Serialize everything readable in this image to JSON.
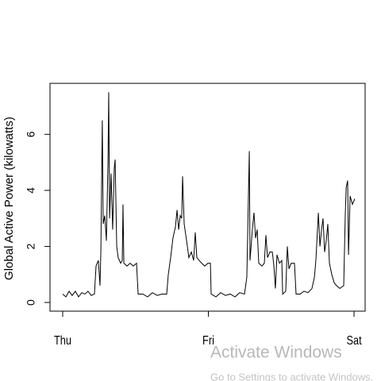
{
  "chart_data": {
    "type": "line",
    "ylabel": "Global Active Power (kilowatts)",
    "xlim": [
      -0.087,
      2.076
    ],
    "ylim": [
      -0.31,
      7.82
    ],
    "xticks": [
      {
        "value": 0,
        "label": "Thu"
      },
      {
        "value": 1,
        "label": "Fri"
      },
      {
        "value": 2,
        "label": "Sat"
      }
    ],
    "yticks": [
      0,
      2,
      4,
      6
    ],
    "color": "#000000",
    "x": [
      0.0,
      0.022,
      0.044,
      0.065,
      0.087,
      0.109,
      0.131,
      0.153,
      0.174,
      0.196,
      0.218,
      0.229,
      0.245,
      0.256,
      0.262,
      0.272,
      0.278,
      0.289,
      0.3,
      0.311,
      0.316,
      0.322,
      0.332,
      0.343,
      0.354,
      0.36,
      0.371,
      0.381,
      0.398,
      0.409,
      0.414,
      0.42,
      0.441,
      0.463,
      0.485,
      0.507,
      0.518,
      0.55,
      0.583,
      0.616,
      0.649,
      0.681,
      0.714,
      0.725,
      0.741,
      0.757,
      0.774,
      0.785,
      0.796,
      0.807,
      0.817,
      0.823,
      0.834,
      0.845,
      0.856,
      0.866,
      0.883,
      0.899,
      0.91,
      0.921,
      0.937,
      0.954,
      0.975,
      0.997,
      1.014,
      1.019,
      1.052,
      1.084,
      1.117,
      1.15,
      1.183,
      1.215,
      1.248,
      1.264,
      1.281,
      1.286,
      1.302,
      1.313,
      1.324,
      1.335,
      1.346,
      1.368,
      1.384,
      1.395,
      1.406,
      1.422,
      1.439,
      1.45,
      1.46,
      1.471,
      1.488,
      1.504,
      1.51,
      1.531,
      1.542,
      1.553,
      1.569,
      1.591,
      1.602,
      1.629,
      1.657,
      1.684,
      1.711,
      1.728,
      1.738,
      1.755,
      1.766,
      1.777,
      1.787,
      1.798,
      1.809,
      1.82,
      1.831,
      1.847,
      1.864,
      1.88,
      1.902,
      1.929,
      1.94,
      1.946,
      1.956,
      1.962,
      1.973,
      1.989,
      2.005
    ],
    "values": [
      0.3,
      0.2,
      0.4,
      0.25,
      0.4,
      0.2,
      0.35,
      0.3,
      0.4,
      0.25,
      0.3,
      1.3,
      1.5,
      0.6,
      1.8,
      6.5,
      2.8,
      3.1,
      2.2,
      5.0,
      7.5,
      3.0,
      4.6,
      2.6,
      4.8,
      5.1,
      2.0,
      1.6,
      1.4,
      1.5,
      3.5,
      1.4,
      1.3,
      1.4,
      1.3,
      1.4,
      0.3,
      0.3,
      0.2,
      0.35,
      0.25,
      0.3,
      0.3,
      1.0,
      1.6,
      2.3,
      2.7,
      3.3,
      2.6,
      3.1,
      3.0,
      4.5,
      2.8,
      2.4,
      2.0,
      1.6,
      1.8,
      1.5,
      2.5,
      1.6,
      1.5,
      1.4,
      1.3,
      1.4,
      1.4,
      0.3,
      0.2,
      0.35,
      0.25,
      0.3,
      0.2,
      0.35,
      0.3,
      0.9,
      5.4,
      1.5,
      2.6,
      3.2,
      2.3,
      2.6,
      1.4,
      1.3,
      1.4,
      2.4,
      1.6,
      1.8,
      1.8,
      1.3,
      0.5,
      1.7,
      1.4,
      1.5,
      0.3,
      0.4,
      2.0,
      1.2,
      1.4,
      1.4,
      0.3,
      0.3,
      0.4,
      0.35,
      0.5,
      0.9,
      1.5,
      3.2,
      2.0,
      2.6,
      3.0,
      1.8,
      2.2,
      2.8,
      1.4,
      1.0,
      0.7,
      0.6,
      0.5,
      0.6,
      3.2,
      4.1,
      4.35,
      1.7,
      3.8,
      3.5,
      3.7
    ]
  },
  "watermark": {
    "title": "Activate Windows",
    "subtitle": "Go to Settings to activate Windows."
  }
}
